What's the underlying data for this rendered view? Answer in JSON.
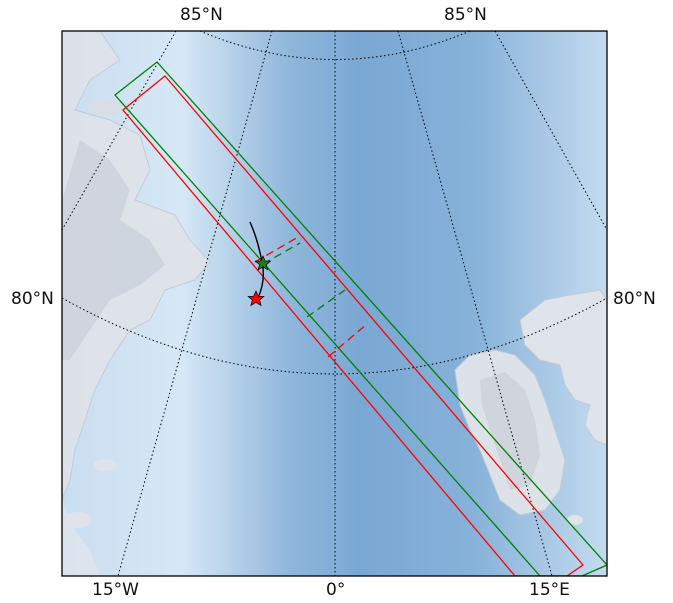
{
  "map": {
    "labels": {
      "top_left": "85°N",
      "top_right": "85°N",
      "left": "80°N",
      "right": "80°N",
      "bottom_left": "15°W",
      "bottom_center": "0°",
      "bottom_right": "15°E"
    },
    "colors": {
      "swath_red": "#ff0000",
      "swath_green": "#008000",
      "ocean_dark": "#7aa8d4",
      "ocean_light": "#cfe3f5",
      "land": "#d8dde6",
      "graticule": "#000000"
    },
    "markers": [
      {
        "name": "red-star",
        "color": "#ff0000",
        "symbol": "star"
      },
      {
        "name": "green-star",
        "color": "#1f7a1f",
        "symbol": "star"
      }
    ]
  }
}
